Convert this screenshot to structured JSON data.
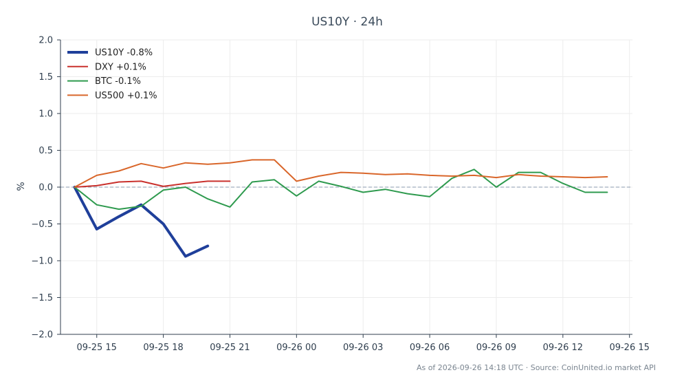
{
  "chart_data": {
    "type": "line",
    "title": "US10Y · 24h",
    "ylabel": "%",
    "xlabel": "",
    "ylim": [
      -2.0,
      2.0
    ],
    "yticks": [
      2.0,
      1.5,
      1.0,
      0.5,
      0.0,
      -0.5,
      -1.0,
      -1.5,
      -2.0
    ],
    "ytick_labels": [
      "2.0",
      "1.5",
      "1.0",
      "0.5",
      "0.0",
      "−0.5",
      "−1.0",
      "−1.5",
      "−2.0"
    ],
    "xlim": [
      "2026-09-25 13:22",
      "2026-09-26 15:08"
    ],
    "xticks": [
      "2026-09-25 15:00",
      "2026-09-25 18:00",
      "2026-09-25 21:00",
      "2026-09-26 00:00",
      "2026-09-26 03:00",
      "2026-09-26 06:00",
      "2026-09-26 09:00",
      "2026-09-26 12:00",
      "2026-09-26 15:00"
    ],
    "xtick_labels": [
      "09-25 15",
      "09-25 18",
      "09-25 21",
      "09-26 00",
      "09-26 03",
      "09-26 06",
      "09-26 09",
      "09-26 12",
      "09-26 15"
    ],
    "grid": true,
    "zero_line": true,
    "legend_position": "top-left",
    "series": [
      {
        "name": "US10Y -0.8%",
        "color": "#1f3f9a",
        "width": 4,
        "x": [
          "2026-09-25 14:00",
          "2026-09-25 15:00",
          "2026-09-25 16:00",
          "2026-09-25 17:00",
          "2026-09-25 18:00",
          "2026-09-25 19:00",
          "2026-09-25 20:00"
        ],
        "y": [
          0.0,
          -0.57,
          -0.4,
          -0.24,
          -0.5,
          -0.94,
          -0.8
        ]
      },
      {
        "name": "DXY +0.1%",
        "color": "#c9302c",
        "width": 2,
        "x": [
          "2026-09-25 14:00",
          "2026-09-25 15:00",
          "2026-09-25 16:00",
          "2026-09-25 17:00",
          "2026-09-25 18:00",
          "2026-09-25 19:00",
          "2026-09-25 20:00",
          "2026-09-25 21:00"
        ],
        "y": [
          0.0,
          0.02,
          0.07,
          0.08,
          0.01,
          0.05,
          0.08,
          0.08
        ]
      },
      {
        "name": "BTC -0.1%",
        "color": "#2e9a4e",
        "width": 2,
        "x": [
          "2026-09-25 14:00",
          "2026-09-25 15:00",
          "2026-09-25 16:00",
          "2026-09-25 17:00",
          "2026-09-25 18:00",
          "2026-09-25 19:00",
          "2026-09-25 20:00",
          "2026-09-25 21:00",
          "2026-09-25 22:00",
          "2026-09-25 23:00",
          "2026-09-26 00:00",
          "2026-09-26 01:00",
          "2026-09-26 02:00",
          "2026-09-26 03:00",
          "2026-09-26 04:00",
          "2026-09-26 05:00",
          "2026-09-26 06:00",
          "2026-09-26 07:00",
          "2026-09-26 08:00",
          "2026-09-26 09:00",
          "2026-09-26 10:00",
          "2026-09-26 11:00",
          "2026-09-26 12:00",
          "2026-09-26 13:00",
          "2026-09-26 14:00"
        ],
        "y": [
          0.0,
          -0.24,
          -0.3,
          -0.26,
          -0.04,
          0.0,
          -0.16,
          -0.27,
          0.07,
          0.1,
          -0.12,
          0.08,
          0.01,
          -0.07,
          -0.03,
          -0.09,
          -0.13,
          0.12,
          0.24,
          0.0,
          0.2,
          0.2,
          0.05,
          -0.07,
          -0.07
        ]
      },
      {
        "name": "US500 +0.1%",
        "color": "#d9662a",
        "width": 2,
        "x": [
          "2026-09-25 14:00",
          "2026-09-25 15:00",
          "2026-09-25 16:00",
          "2026-09-25 17:00",
          "2026-09-25 18:00",
          "2026-09-25 19:00",
          "2026-09-25 20:00",
          "2026-09-25 21:00",
          "2026-09-25 22:00",
          "2026-09-25 23:00",
          "2026-09-26 00:00",
          "2026-09-26 01:00",
          "2026-09-26 02:00",
          "2026-09-26 03:00",
          "2026-09-26 04:00",
          "2026-09-26 05:00",
          "2026-09-26 06:00",
          "2026-09-26 07:00",
          "2026-09-26 08:00",
          "2026-09-26 09:00",
          "2026-09-26 10:00",
          "2026-09-26 11:00",
          "2026-09-26 12:00",
          "2026-09-26 13:00",
          "2026-09-26 14:00"
        ],
        "y": [
          0.0,
          0.16,
          0.22,
          0.32,
          0.26,
          0.33,
          0.31,
          0.33,
          0.37,
          0.37,
          0.08,
          0.15,
          0.2,
          0.19,
          0.17,
          0.18,
          0.16,
          0.15,
          0.16,
          0.13,
          0.17,
          0.15,
          0.14,
          0.13,
          0.14
        ]
      }
    ]
  },
  "footer": {
    "text": "As of 2026-09-26 14:18 UTC · Source: CoinUnited.io market API"
  }
}
